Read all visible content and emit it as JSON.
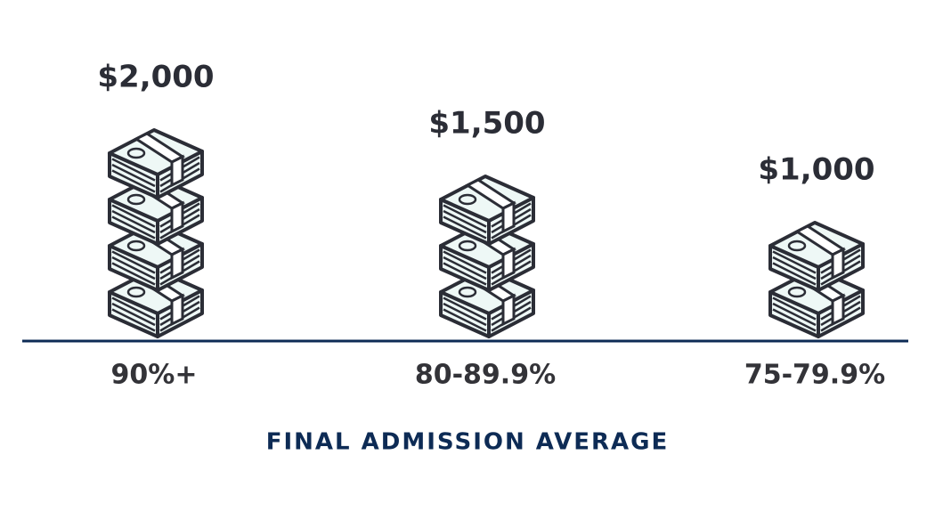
{
  "chart_data": {
    "type": "pictogram",
    "categories": [
      "90%+",
      "80-89.9%",
      "75-79.9%"
    ],
    "values": [
      2000,
      1500,
      1000
    ],
    "value_labels": [
      "$2,000",
      "$1,500",
      "$1,000"
    ],
    "x_label": "FINAL ADMISSION AVERAGE",
    "color": "#eef8f6"
  }
}
